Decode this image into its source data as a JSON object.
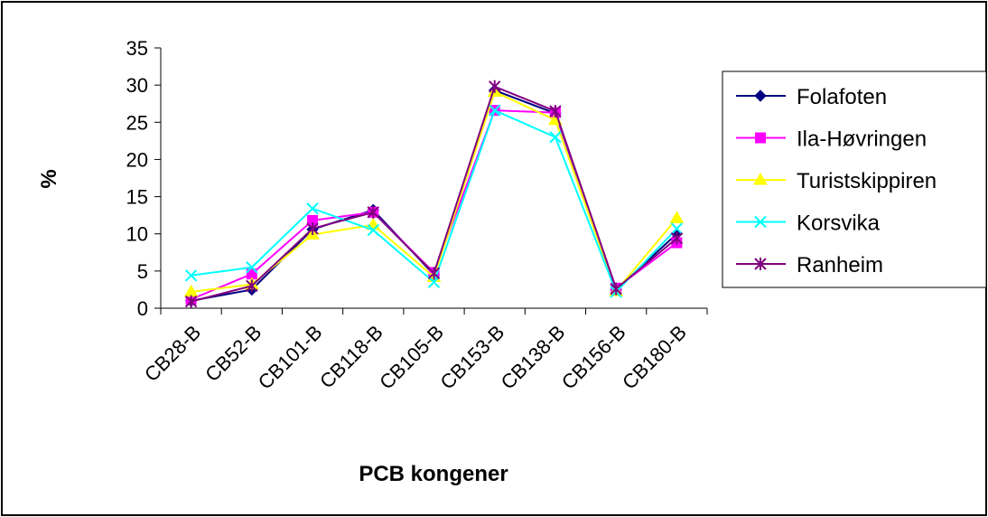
{
  "chart_data": {
    "type": "line",
    "title": "",
    "xlabel": "PCB kongener",
    "ylabel": "%",
    "ylim": [
      0,
      35
    ],
    "yticks": [
      0,
      5,
      10,
      15,
      20,
      25,
      30,
      35
    ],
    "grid": false,
    "legend_position": "right",
    "categories": [
      "CB28-B",
      "CB52-B",
      "CB101-B",
      "CB118-B",
      "CB105-B",
      "CB153-B",
      "CB138-B",
      "CB156-B",
      "CB180-B"
    ],
    "series": [
      {
        "name": "Folafoten",
        "color": "#000080",
        "marker": "diamond",
        "values": [
          1.0,
          2.5,
          10.6,
          13.2,
          4.5,
          29.3,
          26.2,
          2.5,
          10.0
        ]
      },
      {
        "name": "Ila-Høvringen",
        "color": "#FF00FF",
        "marker": "square",
        "values": [
          1.2,
          4.6,
          11.8,
          12.9,
          4.8,
          26.6,
          26.3,
          2.7,
          8.8
        ]
      },
      {
        "name": "Turistskippiren",
        "color": "#FFFF00",
        "marker": "triangle",
        "values": [
          2.2,
          3.2,
          9.9,
          11.2,
          4.2,
          29.1,
          25.3,
          2.3,
          12.1
        ]
      },
      {
        "name": "Korsvika",
        "color": "#00FFFF",
        "marker": "x",
        "values": [
          4.4,
          5.5,
          13.4,
          10.5,
          3.5,
          26.6,
          23.0,
          2.2,
          10.7
        ]
      },
      {
        "name": "Ranheim",
        "color": "#800080",
        "marker": "asterisk",
        "values": [
          0.9,
          3.0,
          10.7,
          12.9,
          4.7,
          29.8,
          26.5,
          2.6,
          9.4
        ]
      }
    ]
  }
}
